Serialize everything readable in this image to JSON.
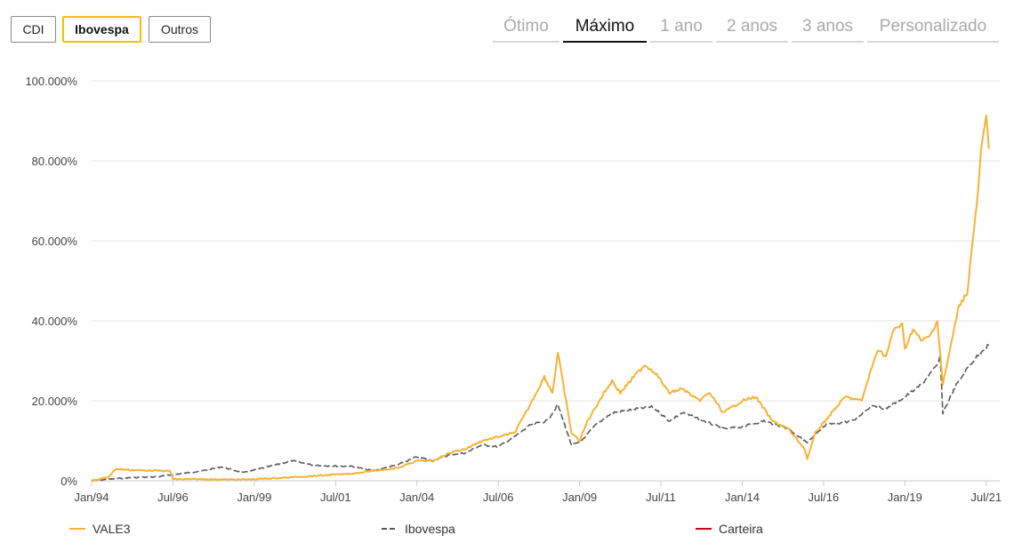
{
  "compare_buttons": [
    {
      "label": "CDI",
      "active": false
    },
    {
      "label": "Ibovespa",
      "active": true
    },
    {
      "label": "Outros",
      "active": false
    }
  ],
  "period_tabs": [
    {
      "label": "Ótimo",
      "active": false
    },
    {
      "label": "Máximo",
      "active": true
    },
    {
      "label": "1 ano",
      "active": false
    },
    {
      "label": "2 anos",
      "active": false
    },
    {
      "label": "3 anos",
      "active": false
    },
    {
      "label": "Personalizado",
      "active": false
    }
  ],
  "chart_data": {
    "type": "line",
    "title": "",
    "xlabel": "",
    "ylabel": "",
    "ylim": [
      0,
      100000
    ],
    "xlim": [
      "1994-01",
      "2021-12"
    ],
    "y_ticks": [
      {
        "value": 0,
        "label": "0%"
      },
      {
        "value": 20000,
        "label": "20.000%"
      },
      {
        "value": 40000,
        "label": "40.000%"
      },
      {
        "value": 60000,
        "label": "60.000%"
      },
      {
        "value": 80000,
        "label": "80.000%"
      },
      {
        "value": 100000,
        "label": "100.000%"
      }
    ],
    "x_ticks": [
      {
        "value": "1994-01",
        "label": "Jan/94"
      },
      {
        "value": "1996-07",
        "label": "Jul/96"
      },
      {
        "value": "1999-01",
        "label": "Jan/99"
      },
      {
        "value": "2001-07",
        "label": "Jul/01"
      },
      {
        "value": "2004-01",
        "label": "Jan/04"
      },
      {
        "value": "2006-07",
        "label": "Jul/06"
      },
      {
        "value": "2009-01",
        "label": "Jan/09"
      },
      {
        "value": "2011-07",
        "label": "Jul/11"
      },
      {
        "value": "2014-01",
        "label": "Jan/14"
      },
      {
        "value": "2016-07",
        "label": "Jul/16"
      },
      {
        "value": "2019-01",
        "label": "Jan/19"
      },
      {
        "value": "2021-07",
        "label": "Jul/21"
      }
    ],
    "grid": true,
    "legend_position": "bottom",
    "series": [
      {
        "name": "VALE3",
        "color": "#f5b335",
        "style": "solid",
        "points": [
          [
            "1994-01",
            0
          ],
          [
            "1994-07",
            900
          ],
          [
            "1994-10",
            3000
          ],
          [
            "1995-03",
            2700
          ],
          [
            "1995-09",
            2600
          ],
          [
            "1996-03",
            2500
          ],
          [
            "1996-06",
            2400
          ],
          [
            "1996-07",
            400
          ],
          [
            "1997-06",
            400
          ],
          [
            "1998-06",
            300
          ],
          [
            "1999-01",
            400
          ],
          [
            "2000-01",
            800
          ],
          [
            "2001-01",
            1300
          ],
          [
            "2002-01",
            1800
          ],
          [
            "2002-10",
            2600
          ],
          [
            "2003-06",
            3200
          ],
          [
            "2004-01",
            5000
          ],
          [
            "2004-07",
            5000
          ],
          [
            "2005-01",
            7000
          ],
          [
            "2005-07",
            8000
          ],
          [
            "2006-01",
            10000
          ],
          [
            "2006-07",
            11000
          ],
          [
            "2007-01",
            12000
          ],
          [
            "2007-06",
            18000
          ],
          [
            "2007-12",
            26000
          ],
          [
            "2008-03",
            22000
          ],
          [
            "2008-05",
            32000
          ],
          [
            "2008-07",
            24000
          ],
          [
            "2008-10",
            12000
          ],
          [
            "2009-01",
            10000
          ],
          [
            "2009-04",
            15000
          ],
          [
            "2009-10",
            22000
          ],
          [
            "2010-01",
            25000
          ],
          [
            "2010-04",
            22000
          ],
          [
            "2010-09",
            26000
          ],
          [
            "2011-01",
            29000
          ],
          [
            "2011-05",
            27000
          ],
          [
            "2011-10",
            22000
          ],
          [
            "2012-03",
            23000
          ],
          [
            "2012-09",
            20000
          ],
          [
            "2013-01",
            22000
          ],
          [
            "2013-06",
            17000
          ],
          [
            "2014-01",
            20000
          ],
          [
            "2014-06",
            21000
          ],
          [
            "2014-12",
            15000
          ],
          [
            "2015-06",
            13000
          ],
          [
            "2015-12",
            8000
          ],
          [
            "2016-01",
            5500
          ],
          [
            "2016-04",
            12000
          ],
          [
            "2016-10",
            17000
          ],
          [
            "2017-03",
            21000
          ],
          [
            "2017-09",
            20000
          ],
          [
            "2018-03",
            33000
          ],
          [
            "2018-06",
            31000
          ],
          [
            "2018-09",
            38000
          ],
          [
            "2018-12",
            39000
          ],
          [
            "2019-01",
            33000
          ],
          [
            "2019-04",
            38000
          ],
          [
            "2019-07",
            35000
          ],
          [
            "2019-10",
            36000
          ],
          [
            "2020-01",
            40000
          ],
          [
            "2020-03",
            24000
          ],
          [
            "2020-06",
            34000
          ],
          [
            "2020-09",
            44000
          ],
          [
            "2020-12",
            47000
          ],
          [
            "2021-02",
            60000
          ],
          [
            "2021-04",
            72000
          ],
          [
            "2021-05",
            82000
          ],
          [
            "2021-07",
            91000
          ],
          [
            "2021-08",
            83000
          ]
        ]
      },
      {
        "name": "Ibovespa",
        "color": "#5a5a5a",
        "style": "dashed",
        "points": [
          [
            "1994-01",
            0
          ],
          [
            "1995-01",
            700
          ],
          [
            "1996-01",
            1000
          ],
          [
            "1997-06",
            2500
          ],
          [
            "1998-01",
            3500
          ],
          [
            "1998-09",
            2000
          ],
          [
            "1999-06",
            3500
          ],
          [
            "2000-03",
            5000
          ],
          [
            "2000-10",
            4000
          ],
          [
            "2001-06",
            3700
          ],
          [
            "2002-01",
            3600
          ],
          [
            "2002-09",
            2500
          ],
          [
            "2003-06",
            4000
          ],
          [
            "2004-01",
            6000
          ],
          [
            "2004-07",
            5000
          ],
          [
            "2005-01",
            6500
          ],
          [
            "2005-07",
            7000
          ],
          [
            "2006-01",
            9000
          ],
          [
            "2006-07",
            8500
          ],
          [
            "2007-01",
            11000
          ],
          [
            "2007-07",
            14000
          ],
          [
            "2008-01",
            15000
          ],
          [
            "2008-05",
            19000
          ],
          [
            "2008-10",
            9000
          ],
          [
            "2009-01",
            9500
          ],
          [
            "2009-07",
            14000
          ],
          [
            "2010-01",
            17000
          ],
          [
            "2010-10",
            18000
          ],
          [
            "2011-04",
            18500
          ],
          [
            "2011-10",
            15000
          ],
          [
            "2012-03",
            17000
          ],
          [
            "2012-09",
            15500
          ],
          [
            "2013-06",
            13000
          ],
          [
            "2014-01",
            13500
          ],
          [
            "2014-09",
            15000
          ],
          [
            "2015-06",
            13000
          ],
          [
            "2015-12",
            10000
          ],
          [
            "2016-01",
            9500
          ],
          [
            "2016-08",
            14000
          ],
          [
            "2017-06",
            15000
          ],
          [
            "2018-01",
            19000
          ],
          [
            "2018-06",
            18000
          ],
          [
            "2019-01",
            21000
          ],
          [
            "2019-07",
            24000
          ],
          [
            "2020-01",
            29000
          ],
          [
            "2020-02",
            31000
          ],
          [
            "2020-03",
            17000
          ],
          [
            "2020-08",
            24000
          ],
          [
            "2021-01",
            29000
          ],
          [
            "2021-06",
            33000
          ],
          [
            "2021-08",
            34000
          ]
        ]
      },
      {
        "name": "Carteira",
        "color": "#d0021b",
        "style": "solid",
        "points": []
      }
    ]
  }
}
